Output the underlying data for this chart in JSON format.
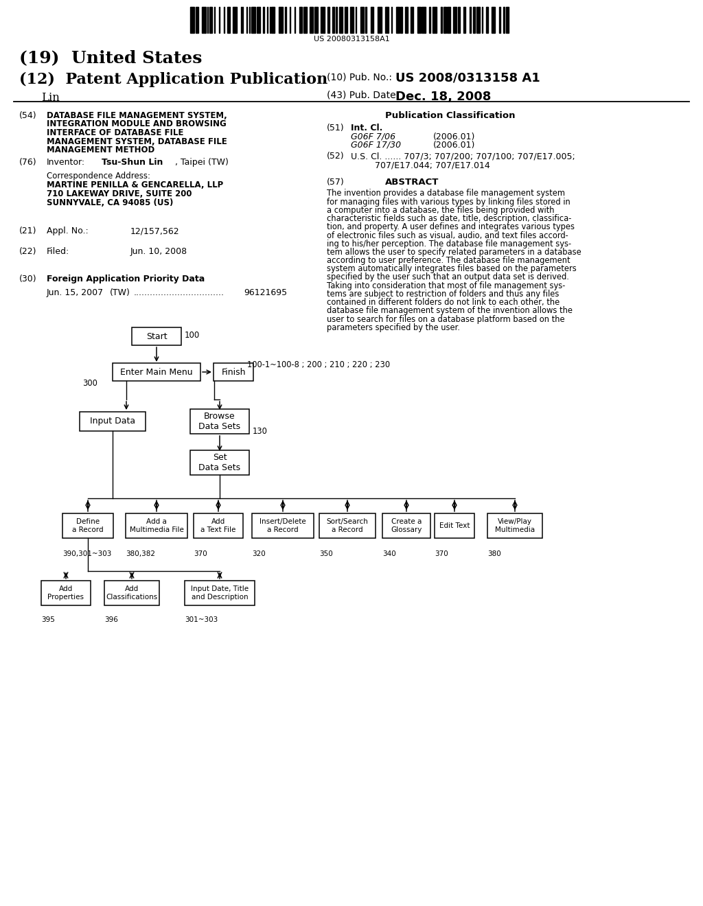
{
  "bg_color": "#ffffff",
  "barcode_text": "US 20080313158A1",
  "title_19": "(19)  United States",
  "title_12": "(12)  Patent Application Publication",
  "title_name": "     Lin",
  "pub_no_label": "(10) Pub. No.:",
  "pub_no_value": "US 2008/0313158 A1",
  "pub_date_label": "(43) Pub. Date:",
  "pub_date_value": "Dec. 18, 2008",
  "field54_label": "(54)",
  "field54_lines": [
    "DATABASE FILE MANAGEMENT SYSTEM,",
    "INTEGRATION MODULE AND BROWSING",
    "INTERFACE OF DATABASE FILE",
    "MANAGEMENT SYSTEM, DATABASE FILE",
    "MANAGEMENT METHOD"
  ],
  "pub_class_title": "Publication Classification",
  "field51_label": "(51)",
  "field51_title": "Int. Cl.",
  "field51_g06f706": "G06F 7/06",
  "field51_g06f706_year": "(2006.01)",
  "field51_g06f1730": "G06F 17/30",
  "field51_g06f1730_year": "(2006.01)",
  "field52_label": "(52)",
  "field52_line1": "U.S. Cl. ...... 707/3; 707/200; 707/100; 707/E17.005;",
  "field52_line2": "707/E17.044; 707/E17.014",
  "field57_label": "(57)",
  "field57_title": "ABSTRACT",
  "abstract_lines": [
    "The invention provides a database file management system",
    "for managing files with various types by linking files stored in",
    "a computer into a database, the files being provided with",
    "characteristic fields such as date, title, description, classifica-",
    "tion, and property. A user defines and integrates various types",
    "of electronic files such as visual, audio, and text files accord-",
    "ing to his/her perception. The database file management sys-",
    "tem allows the user to specify related parameters in a database",
    "according to user preference. The database file management",
    "system automatically integrates files based on the parameters",
    "specified by the user such that an output data set is derived.",
    "Taking into consideration that most of file management sys-",
    "tems are subject to restriction of folders and thus any files",
    "contained in different folders do not link to each other, the",
    "database file management system of the invention allows the",
    "user to search for files on a database platform based on the",
    "parameters specified by the user."
  ],
  "field76_label": "(76)",
  "field76_title": "Inventor:",
  "field76_name": "Tsu-Shun Lin",
  "field76_location": ", Taipei (TW)",
  "corr_title": "Correspondence Address:",
  "corr_line1": "MARTINE PENILLA & GENCARELLA, LLP",
  "corr_line2": "710 LAKEWAY DRIVE, SUITE 200",
  "corr_line3": "SUNNYVALE, CA 94085 (US)",
  "field21_label": "(21)",
  "field21_title": "Appl. No.:",
  "field21_value": "12/157,562",
  "field22_label": "(22)",
  "field22_title": "Filed:",
  "field22_value": "Jun. 10, 2008",
  "field30_label": "(30)",
  "field30_title": "Foreign Application Priority Data",
  "field30_date": "Jun. 15, 2007",
  "field30_country": "(TW)",
  "field30_dots": ".................................",
  "field30_number": "96121695"
}
